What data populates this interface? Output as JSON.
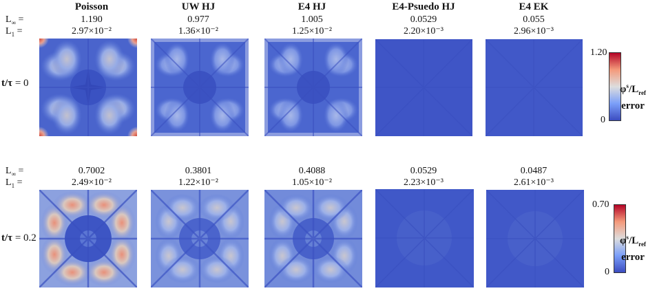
{
  "columns": [
    {
      "title": "Poisson"
    },
    {
      "title": "UW HJ"
    },
    {
      "title": "E4 HJ"
    },
    {
      "title": "E4-Psuedo HJ"
    },
    {
      "title": "E4 EK"
    }
  ],
  "metric_labels": {
    "linf": "L∞ =",
    "l1": "L1 ="
  },
  "rows": [
    {
      "time_label": "t/τ",
      "time_value": "= 0",
      "linf": [
        "1.190",
        "0.977",
        "1.005",
        "0.0529",
        "0.055"
      ],
      "l1": [
        "2.97×10⁻²",
        "1.36×10⁻²",
        "1.25×10⁻²",
        "2.20×10⁻³",
        "2.96×10⁻³"
      ],
      "colorbar": {
        "max": "1.20",
        "min": "0",
        "label_line1": "φs/Lref",
        "label_line2": "error"
      }
    },
    {
      "time_label": "t/τ",
      "time_value": "= 0.2",
      "linf": [
        "0.7002",
        "0.3801",
        "0.4088",
        "0.0529",
        "0.0487"
      ],
      "l1": [
        "2.49×10⁻²",
        "1.22×10⁻²",
        "1.05×10⁻²",
        "2.23×10⁻³",
        "2.61×10⁻³"
      ],
      "colorbar": {
        "max": "0.70",
        "min": "0",
        "label_line1": "φs/Lref",
        "label_line2": "error"
      }
    }
  ],
  "colors": {
    "low": "#3b4cc0",
    "mid": "#dddddd",
    "high": "#b40426"
  }
}
